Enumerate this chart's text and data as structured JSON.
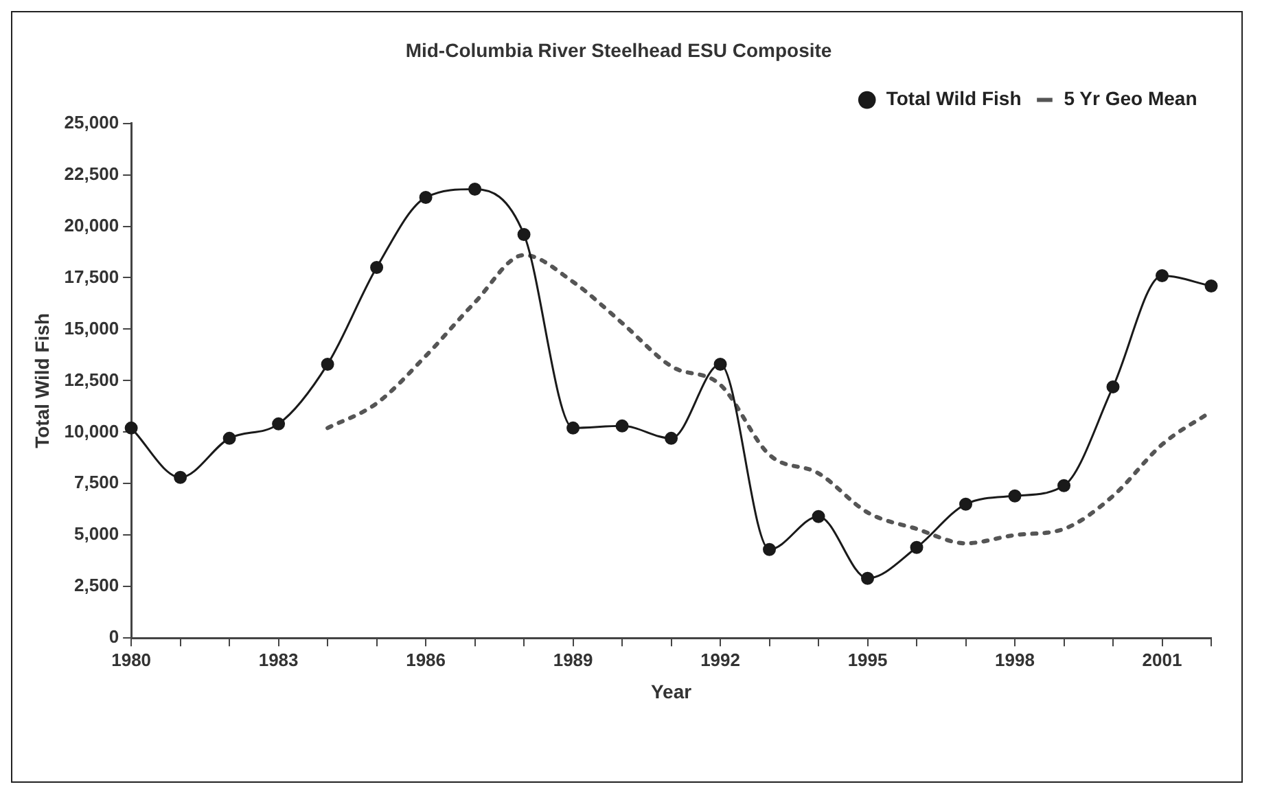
{
  "chart_data": {
    "type": "line",
    "title": "Mid-Columbia River Steelhead ESU Composite",
    "xlabel": "Year",
    "ylabel": "Total Wild Fish",
    "x": [
      1980,
      1981,
      1982,
      1983,
      1984,
      1985,
      1986,
      1987,
      1988,
      1989,
      1990,
      1991,
      1992,
      1993,
      1994,
      1995,
      1996,
      1997,
      1998,
      1999,
      2000,
      2001,
      2002
    ],
    "series": [
      {
        "name": "Total Wild Fish",
        "color": "#1a1a1a",
        "marker": "circle",
        "line_style": "solid",
        "values": [
          10200,
          7800,
          9700,
          10400,
          13300,
          18000,
          21400,
          21800,
          19600,
          10200,
          10300,
          9700,
          13300,
          4300,
          5900,
          2900,
          4400,
          6500,
          6900,
          7400,
          12200,
          17600,
          17100
        ]
      },
      {
        "name": "5 Yr Geo Mean",
        "color": "#555555",
        "marker": "none",
        "line_style": "dotted",
        "values": [
          null,
          null,
          null,
          null,
          10200,
          11400,
          13700,
          16300,
          18600,
          17300,
          15300,
          13200,
          12300,
          8900,
          8000,
          6100,
          5300,
          4600,
          5000,
          5300,
          6900,
          9400,
          11000
        ]
      }
    ],
    "xlim": [
      1980,
      2002
    ],
    "xticks": [
      1980,
      {
        "value": 1981,
        "label": null
      },
      {
        "value": 1982,
        "label": null
      },
      1983,
      {
        "value": 1984,
        "label": null
      },
      {
        "value": 1985,
        "label": null
      },
      1986,
      {
        "value": 1987,
        "label": null
      },
      {
        "value": 1988,
        "label": null
      },
      1989,
      {
        "value": 1990,
        "label": null
      },
      {
        "value": 1991,
        "label": null
      },
      1992,
      {
        "value": 1993,
        "label": null
      },
      {
        "value": 1994,
        "label": null
      },
      1995,
      {
        "value": 1996,
        "label": null
      },
      {
        "value": 1997,
        "label": null
      },
      1998,
      {
        "value": 1999,
        "label": null
      },
      {
        "value": 2000,
        "label": null
      },
      2001,
      {
        "value": 2002,
        "label": null
      }
    ],
    "ylim": [
      0,
      25000
    ],
    "yticks": [
      {
        "value": 0,
        "label": "0"
      },
      {
        "value": 2500,
        "label": "2,500"
      },
      {
        "value": 5000,
        "label": "5,000"
      },
      {
        "value": 7500,
        "label": "7,500"
      },
      {
        "value": 10000,
        "label": "10,000"
      },
      {
        "value": 12500,
        "label": "12,500"
      },
      {
        "value": 15000,
        "label": "15,000"
      },
      {
        "value": 17500,
        "label": "17,500"
      },
      {
        "value": 20000,
        "label": "20,000"
      },
      {
        "value": 22500,
        "label": "22,500"
      },
      {
        "value": 25000,
        "label": "25,000"
      }
    ],
    "grid": false,
    "legend": "top right"
  }
}
